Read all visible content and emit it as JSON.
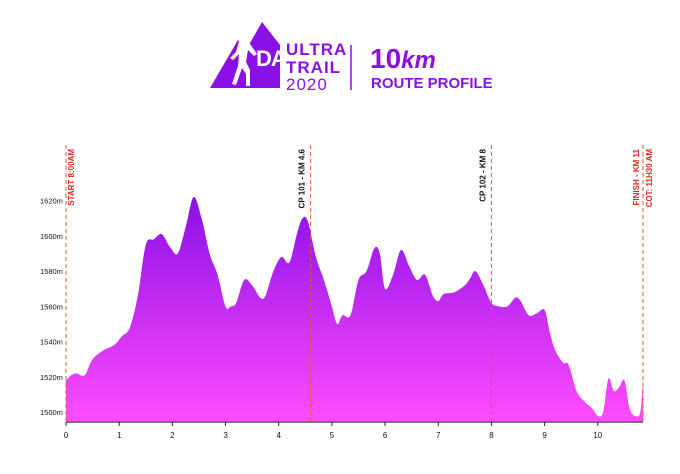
{
  "header": {
    "logo_letters": "DALAT",
    "ultra_line": "ULTRA",
    "trail_line": "TRAIL",
    "year": "2020",
    "distance_number": "10",
    "distance_unit": "km",
    "subtitle": "ROUTE PROFILE"
  },
  "colors": {
    "brand_purple": "#8a10e6",
    "fill_top": "#8a10e6",
    "fill_bottom": "#ff4bff",
    "marker_line": "#e8572b",
    "start_finish_text": "#e0231c",
    "checkpoint_text": "#111111"
  },
  "chart_data": {
    "type": "area",
    "title": "",
    "xlabel": "",
    "ylabel": "",
    "xlim": [
      0,
      10.85
    ],
    "ylim": [
      1495,
      1630
    ],
    "x_ticks": [
      "0",
      "1",
      "2",
      "3",
      "4",
      "5",
      "6",
      "7",
      "8",
      "9",
      "10"
    ],
    "y_ticks": [
      "1500m",
      "1520m",
      "1540m",
      "1560m",
      "1580m",
      "1600m",
      "1620m"
    ],
    "grid": false,
    "series": [
      {
        "x": [
          0,
          0.1,
          0.2,
          0.35,
          0.5,
          0.7,
          0.9,
          1.05,
          1.2,
          1.35,
          1.5,
          1.65,
          1.8,
          1.95,
          2.1,
          2.25,
          2.4,
          2.55,
          2.7,
          2.85,
          3.0,
          3.1,
          3.2,
          3.35,
          3.5,
          3.65,
          3.75,
          3.9,
          4.05,
          4.2,
          4.35,
          4.45,
          4.55,
          4.7,
          4.85,
          5.0,
          5.1,
          5.2,
          5.35,
          5.5,
          5.65,
          5.8,
          5.9,
          6.0,
          6.15,
          6.3,
          6.45,
          6.6,
          6.75,
          6.9,
          7.0,
          7.1,
          7.3,
          7.5,
          7.6,
          7.7,
          7.85,
          8.0,
          8.15,
          8.3,
          8.45,
          8.55,
          8.7,
          8.85,
          9.0,
          9.1,
          9.2,
          9.35,
          9.45,
          9.6,
          9.75,
          9.9,
          10.0,
          10.1,
          10.2,
          10.3,
          10.4,
          10.5,
          10.6,
          10.7,
          10.8,
          10.85
        ],
        "values": [
          1518,
          1521,
          1522,
          1521,
          1530,
          1535,
          1538,
          1543,
          1548,
          1566,
          1595,
          1598,
          1601,
          1594,
          1590,
          1605,
          1622,
          1610,
          1590,
          1578,
          1560,
          1560,
          1562,
          1575,
          1572,
          1565,
          1566,
          1580,
          1588,
          1585,
          1602,
          1610,
          1608,
          1588,
          1575,
          1560,
          1550,
          1555,
          1555,
          1575,
          1580,
          1593,
          1590,
          1570,
          1578,
          1592,
          1583,
          1575,
          1578,
          1566,
          1563,
          1567,
          1568,
          1572,
          1576,
          1580,
          1572,
          1562,
          1560,
          1560,
          1565,
          1563,
          1555,
          1556,
          1558,
          1545,
          1535,
          1528,
          1527,
          1512,
          1506,
          1502,
          1498,
          1500,
          1519,
          1512,
          1514,
          1518,
          1502,
          1498,
          1500,
          1519
        ]
      }
    ],
    "markers": [
      {
        "x": 0,
        "label": "START 8:00AM",
        "kind": "start"
      },
      {
        "x": 4.6,
        "label": "CP 101 - KM 4.6",
        "kind": "checkpoint"
      },
      {
        "x": 8,
        "label": "CP 102 - KM 8",
        "kind": "checkpoint"
      },
      {
        "x": 10.85,
        "label": "FINISH - KM 11",
        "label2": "COT: 11H30 AM",
        "kind": "finish"
      }
    ]
  }
}
